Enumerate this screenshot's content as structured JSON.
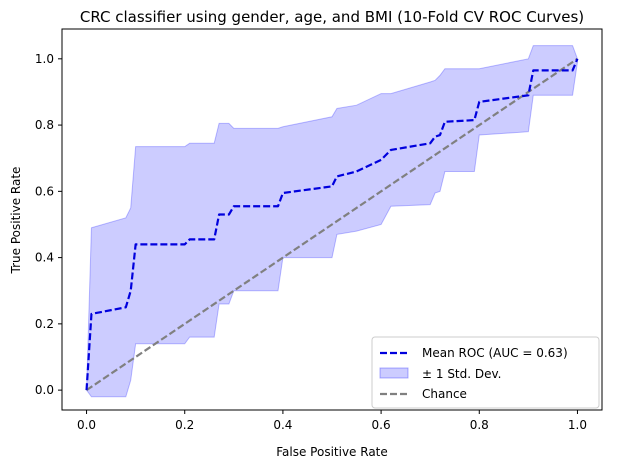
{
  "chart_data": {
    "type": "line",
    "title": "CRC classifier using gender, age, and BMI (10-Fold CV ROC Curves)",
    "xlabel": "False Positive Rate",
    "ylabel": "True Positive Rate",
    "xlim": [
      -0.05,
      1.05
    ],
    "ylim": [
      -0.06,
      1.09
    ],
    "xticks": [
      "0.0",
      "0.2",
      "0.4",
      "0.6",
      "0.8",
      "1.0"
    ],
    "yticks": [
      "0.0",
      "0.2",
      "0.4",
      "0.6",
      "0.8",
      "1.0"
    ],
    "grid": false,
    "legend_position": "lower-right",
    "series": [
      {
        "name": "Mean ROC (AUC = 0.63)",
        "color": "#0000dd",
        "style": "dashed",
        "x": [
          0.0,
          0.01,
          0.08,
          0.09,
          0.1,
          0.2,
          0.21,
          0.26,
          0.27,
          0.29,
          0.3,
          0.39,
          0.4,
          0.5,
          0.51,
          0.55,
          0.6,
          0.62,
          0.7,
          0.71,
          0.72,
          0.73,
          0.79,
          0.8,
          0.9,
          0.91,
          0.99,
          1.0
        ],
        "y": [
          0.0,
          0.23,
          0.25,
          0.3,
          0.44,
          0.44,
          0.455,
          0.455,
          0.53,
          0.53,
          0.555,
          0.555,
          0.595,
          0.615,
          0.645,
          0.66,
          0.695,
          0.725,
          0.745,
          0.765,
          0.77,
          0.81,
          0.815,
          0.87,
          0.89,
          0.965,
          0.965,
          1.0
        ]
      },
      {
        "name": "Chance",
        "color": "#808080",
        "style": "dashed",
        "x": [
          0,
          1
        ],
        "y": [
          0,
          1
        ]
      }
    ],
    "band": {
      "name": "± 1 Std. Dev.",
      "color": "#0000ff",
      "x": [
        0.0,
        0.01,
        0.08,
        0.09,
        0.1,
        0.2,
        0.21,
        0.26,
        0.27,
        0.29,
        0.3,
        0.39,
        0.4,
        0.5,
        0.51,
        0.55,
        0.6,
        0.62,
        0.7,
        0.71,
        0.72,
        0.73,
        0.79,
        0.8,
        0.9,
        0.91,
        0.99,
        1.0
      ],
      "upper": [
        0.0,
        0.49,
        0.52,
        0.55,
        0.735,
        0.735,
        0.745,
        0.745,
        0.805,
        0.805,
        0.79,
        0.79,
        0.795,
        0.825,
        0.85,
        0.86,
        0.895,
        0.895,
        0.93,
        0.935,
        0.95,
        0.97,
        0.97,
        0.97,
        1.0,
        1.04,
        1.04,
        1.0
      ],
      "lower": [
        0.0,
        -0.02,
        -0.02,
        0.03,
        0.14,
        0.14,
        0.16,
        0.16,
        0.26,
        0.26,
        0.3,
        0.3,
        0.4,
        0.4,
        0.47,
        0.48,
        0.5,
        0.555,
        0.56,
        0.595,
        0.6,
        0.66,
        0.66,
        0.77,
        0.78,
        0.89,
        0.89,
        0.99
      ]
    }
  }
}
